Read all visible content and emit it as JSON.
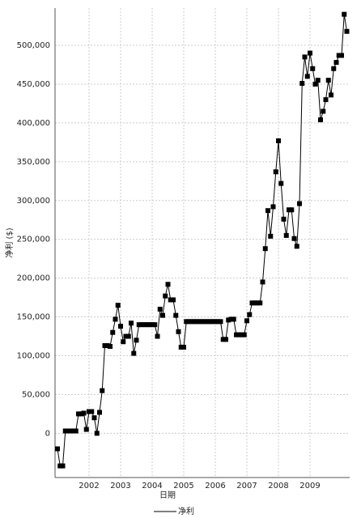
{
  "chart_data": {
    "type": "line",
    "xlabel": "日期",
    "ylabel": "净利 ($)",
    "categories": [
      null,
      null,
      null,
      null,
      null,
      null,
      null,
      null,
      null,
      null,
      null,
      null,
      "2002",
      null,
      null,
      null,
      null,
      null,
      null,
      null,
      null,
      null,
      null,
      null,
      "2003",
      null,
      null,
      null,
      null,
      null,
      null,
      null,
      null,
      null,
      null,
      null,
      "2004",
      null,
      null,
      null,
      null,
      null,
      null,
      null,
      null,
      null,
      null,
      null,
      "2005",
      null,
      null,
      null,
      null,
      null,
      null,
      null,
      null,
      null,
      null,
      null,
      "2006",
      null,
      null,
      null,
      null,
      null,
      null,
      null,
      null,
      null,
      null,
      null,
      "2007",
      null,
      null,
      null,
      null,
      null,
      null,
      null,
      null,
      null,
      null,
      null,
      "2008",
      null,
      null,
      null,
      null,
      null,
      null,
      null,
      null,
      null,
      null,
      null,
      "2009",
      null,
      null,
      null,
      null,
      null,
      null,
      null,
      null,
      null,
      null,
      null,
      null,
      null,
      null
    ],
    "series": [
      {
        "name": "净利",
        "color": "#000000",
        "values": [
          -20000,
          -42000,
          -42000,
          3000,
          3000,
          3000,
          3000,
          3000,
          25000,
          25000,
          26000,
          5000,
          28000,
          28000,
          20000,
          0,
          27000,
          55000,
          113000,
          113000,
          112000,
          130000,
          147000,
          165000,
          138000,
          118000,
          125000,
          125000,
          142000,
          103000,
          120000,
          140000,
          140000,
          140000,
          140000,
          140000,
          140000,
          140000,
          125000,
          160000,
          152000,
          177000,
          192000,
          172000,
          172000,
          152000,
          131000,
          111000,
          111000,
          144000,
          144000,
          144000,
          144000,
          144000,
          144000,
          144000,
          144000,
          144000,
          144000,
          144000,
          144000,
          144000,
          144000,
          121000,
          121000,
          146000,
          147000,
          147000,
          127000,
          127000,
          127000,
          127000,
          145000,
          153000,
          168000,
          168000,
          168000,
          168000,
          195000,
          238000,
          287000,
          254000,
          292000,
          337000,
          377000,
          322000,
          276000,
          255000,
          288000,
          288000,
          251000,
          241000,
          296000,
          451000,
          485000,
          460000,
          490000,
          470000,
          450000,
          455000,
          404000,
          415000,
          430000,
          455000,
          436000,
          470000,
          478000,
          487000,
          487000,
          540000,
          518000
        ]
      }
    ],
    "ylim": [
      -57000,
      548000
    ],
    "yticks": [
      0,
      {
        "value": 50000,
        "label": "50,000"
      },
      {
        "value": 100000,
        "label": "100,000"
      },
      {
        "value": 150000,
        "label": "150,000"
      },
      {
        "value": 200000,
        "label": "200,000"
      },
      {
        "value": 250000,
        "label": "250,000"
      },
      {
        "value": 300000,
        "label": "300,000"
      },
      {
        "value": 350000,
        "label": "350,000"
      },
      {
        "value": 400000,
        "label": "400,000"
      },
      {
        "value": 450000,
        "label": "450,000"
      },
      {
        "value": 500000,
        "label": "500,000"
      }
    ],
    "grid": true,
    "legend": "bottom"
  }
}
